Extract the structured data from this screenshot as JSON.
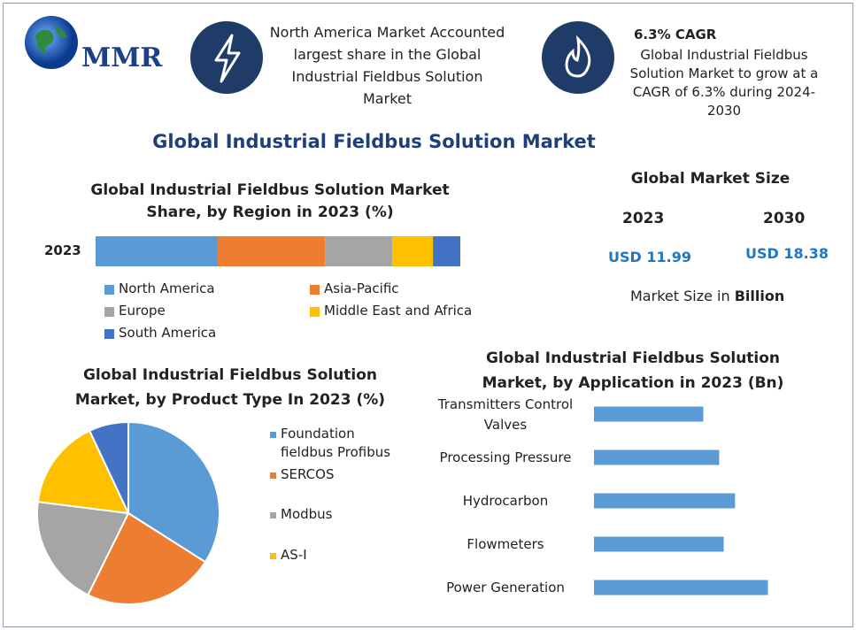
{
  "header": {
    "logo": "MMR",
    "fact1": "North America Market Accounted largest share in the Global Industrial Fieldbus Solution Market",
    "fact2_title": "6.3% CAGR",
    "fact2_text": "Global Industrial Fieldbus Solution Market to grow at a CAGR of 6.3% during 2024-2030"
  },
  "title": "Global Industrial Fieldbus Solution Market",
  "market_size": {
    "title": "Global Market Size",
    "years": [
      "2023",
      "2030"
    ],
    "values": [
      "USD 11.99",
      "USD 18.38"
    ],
    "note": "Market Size in",
    "unit": "Billion"
  },
  "chart_data": [
    {
      "type": "stacked_bar",
      "title": "Global Industrial Fieldbus Solution Market Share, by Region in 2023 (%)",
      "categories": [
        "2023"
      ],
      "series": [
        {
          "name": "North America",
          "color": "#5b9bd5",
          "values": [
            33.5
          ]
        },
        {
          "name": "Asia-Pacific",
          "color": "#ed7d31",
          "values": [
            29.4
          ]
        },
        {
          "name": "Europe",
          "color": "#a5a5a5",
          "values": [
            18.4
          ]
        },
        {
          "name": "Middle East and Africa",
          "color": "#ffc000",
          "values": [
            11.2
          ]
        },
        {
          "name": "South America",
          "color": "#4472c4",
          "values": [
            7.5
          ]
        }
      ]
    },
    {
      "type": "pie",
      "title": "Global Industrial Fieldbus Solution Market, by Product Type  In 2023 (%)",
      "categories": [
        "Foundation fieldbus Profibus",
        "SERCOS",
        "Modbus",
        "AS-I",
        null
      ],
      "values": [
        34,
        23.3,
        19.7,
        16,
        7
      ],
      "colors": [
        "#5b9bd5",
        "#ed7d31",
        "#a5a5a5",
        "#ffc000",
        "#4472c4"
      ]
    },
    {
      "type": "hbar",
      "title": "Global Industrial Fieldbus Solution Market, by Application in 2023 (Bn)",
      "categories": [
        "Transmitters Control Valves",
        "Processing Pressure",
        "Hydrocarbon",
        "Flowmeters",
        "Power Generation"
      ],
      "values": [
        1.93,
        2.21,
        2.49,
        2.29,
        3.07
      ],
      "color": "#5b9bd5"
    }
  ]
}
